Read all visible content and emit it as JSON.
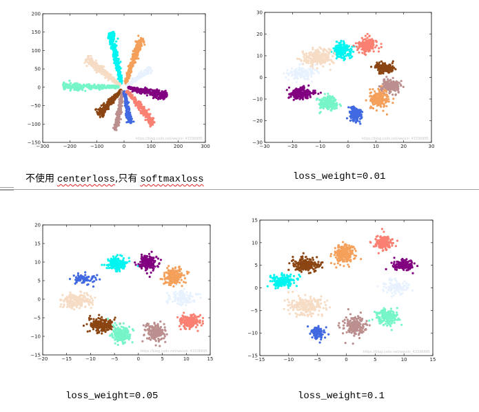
{
  "captions": {
    "c1_zh1": "不使用",
    "c1_word1": "centerloss",
    "c1_zh2": ",只有",
    "c1_word2": "softmaxloss",
    "c2": "loss_weight=0.01",
    "c3": "loss_weight=0.05",
    "c4": "loss_weight=0.1"
  },
  "watermark": "https://blog.csdn.net/weixin_43336895",
  "chart_data": [
    {
      "id": "softmax",
      "type": "scatter",
      "title": "",
      "xlabel": "",
      "ylabel": "",
      "xlim": [
        -300,
        300
      ],
      "ylim": [
        -150,
        200
      ],
      "xticks": [
        -300,
        -200,
        -100,
        0,
        100,
        200,
        300
      ],
      "yticks": [
        -150,
        -100,
        -50,
        0,
        50,
        100,
        150,
        200
      ],
      "grid": false,
      "series": [
        {
          "name": "cyan",
          "color": "#00f5f0",
          "shape": "ray",
          "start": [
            -10,
            10
          ],
          "end": [
            -50,
            148
          ],
          "spread": 5,
          "n": 300
        },
        {
          "name": "sandybrown",
          "color": "#f5a05a",
          "shape": "ray",
          "start": [
            5,
            10
          ],
          "end": [
            65,
            135
          ],
          "spread": 5,
          "n": 300
        },
        {
          "name": "bisque",
          "color": "#f6dcc4",
          "shape": "ray",
          "start": [
            -15,
            5
          ],
          "end": [
            -140,
            80
          ],
          "spread": 5,
          "n": 260
        },
        {
          "name": "aliceblue",
          "color": "#e8f2ff",
          "shape": "ray",
          "start": [
            10,
            5
          ],
          "end": [
            100,
            52
          ],
          "spread": 4,
          "n": 160
        },
        {
          "name": "aquamarine",
          "color": "#76f5c8",
          "shape": "ray",
          "start": [
            -20,
            1
          ],
          "end": [
            -225,
            2
          ],
          "spread": 4,
          "n": 300
        },
        {
          "name": "purple",
          "color": "#800080",
          "shape": "ray",
          "start": [
            15,
            -2
          ],
          "end": [
            158,
            -23
          ],
          "spread": 5,
          "n": 300
        },
        {
          "name": "saddlebrown",
          "color": "#8b4513",
          "shape": "ray",
          "start": [
            -10,
            -8
          ],
          "end": [
            -95,
            -75
          ],
          "spread": 5,
          "n": 280
        },
        {
          "name": "rosybrown",
          "color": "#bc8f8f",
          "shape": "ray",
          "start": [
            -5,
            -10
          ],
          "end": [
            -30,
            -118
          ],
          "spread": 4,
          "n": 240
        },
        {
          "name": "royalblue",
          "color": "#4169e1",
          "shape": "ray",
          "start": [
            2,
            -10
          ],
          "end": [
            22,
            -98
          ],
          "spread": 4,
          "n": 200
        },
        {
          "name": "salmon",
          "color": "#fa8072",
          "shape": "ray",
          "start": [
            10,
            -10
          ],
          "end": [
            110,
            -98
          ],
          "spread": 5,
          "n": 260
        }
      ]
    },
    {
      "id": "w001",
      "type": "scatter",
      "title": "",
      "xlabel": "",
      "ylabel": "",
      "xlim": [
        -30,
        30
      ],
      "ylim": [
        -30,
        30
      ],
      "xticks": [
        -30,
        -20,
        -10,
        0,
        10,
        20,
        30
      ],
      "yticks": [
        -30,
        -20,
        -10,
        0,
        10,
        20,
        30
      ],
      "grid": false,
      "series": [
        {
          "name": "cyan",
          "color": "#00f5f0",
          "shape": "blob",
          "center": [
            -2,
            12.5
          ],
          "sd": [
            1.6,
            1.7
          ],
          "n": 200
        },
        {
          "name": "salmon",
          "color": "#fa8072",
          "shape": "blob",
          "center": [
            7,
            15
          ],
          "sd": [
            1.8,
            1.7
          ],
          "n": 180
        },
        {
          "name": "bisque",
          "color": "#f6dcc4",
          "shape": "blob",
          "center": [
            -11,
            9
          ],
          "sd": [
            2.6,
            1.9
          ],
          "n": 230
        },
        {
          "name": "saddlebrown",
          "color": "#8b4513",
          "shape": "blob",
          "center": [
            13,
            4.5
          ],
          "sd": [
            1.6,
            1.1
          ],
          "n": 180
        },
        {
          "name": "aliceblue",
          "color": "#e8f2ff",
          "shape": "blob",
          "center": [
            -17,
            2
          ],
          "sd": [
            2.4,
            1.5
          ],
          "n": 130
        },
        {
          "name": "rosybrown",
          "color": "#bc8f8f",
          "shape": "blob",
          "center": [
            15,
            -4
          ],
          "sd": [
            1.8,
            1.7
          ],
          "n": 180
        },
        {
          "name": "purple",
          "color": "#800080",
          "shape": "blob",
          "center": [
            -17,
            -7.5
          ],
          "sd": [
            2.1,
            1.3
          ],
          "n": 190
        },
        {
          "name": "sandybrown",
          "color": "#f5a05a",
          "shape": "blob",
          "center": [
            11,
            -10
          ],
          "sd": [
            1.7,
            1.9
          ],
          "n": 180
        },
        {
          "name": "aquamarine",
          "color": "#76f5c8",
          "shape": "blob",
          "center": [
            -7,
            -12
          ],
          "sd": [
            1.9,
            1.5
          ],
          "n": 190
        },
        {
          "name": "royalblue",
          "color": "#4169e1",
          "shape": "blob",
          "center": [
            2.5,
            -17
          ],
          "sd": [
            1.1,
            1.9
          ],
          "n": 170
        }
      ]
    },
    {
      "id": "w005",
      "type": "scatter",
      "title": "",
      "xlabel": "",
      "ylabel": "",
      "xlim": [
        -20,
        15
      ],
      "ylim": [
        -15,
        20
      ],
      "xticks": [
        -20,
        -15,
        -10,
        -5,
        0,
        5,
        10,
        15
      ],
      "yticks": [
        -15,
        -10,
        -5,
        0,
        5,
        10,
        15,
        20
      ],
      "grid": false,
      "series": [
        {
          "name": "cyan",
          "color": "#00f5f0",
          "shape": "blob",
          "center": [
            -4.5,
            9.5
          ],
          "sd": [
            1.0,
            0.9
          ],
          "n": 190
        },
        {
          "name": "purple",
          "color": "#800080",
          "shape": "blob",
          "center": [
            2,
            10
          ],
          "sd": [
            0.9,
            1.0
          ],
          "n": 150
        },
        {
          "name": "royalblue",
          "color": "#4169e1",
          "shape": "blob",
          "center": [
            -11.5,
            5.5
          ],
          "sd": [
            1.2,
            0.6
          ],
          "n": 80
        },
        {
          "name": "sandybrown",
          "color": "#f5a05a",
          "shape": "blob",
          "center": [
            7.5,
            6
          ],
          "sd": [
            1.0,
            1.1
          ],
          "n": 190
        },
        {
          "name": "bisque",
          "color": "#f6dcc4",
          "shape": "blob",
          "center": [
            -13,
            -0.5
          ],
          "sd": [
            1.6,
            1.0
          ],
          "n": 200
        },
        {
          "name": "aliceblue",
          "color": "#e8f2ff",
          "shape": "blob",
          "center": [
            9,
            0.5
          ],
          "sd": [
            1.5,
            1.0
          ],
          "n": 120
        },
        {
          "name": "saddlebrown",
          "color": "#8b4513",
          "shape": "blob",
          "center": [
            -8,
            -7
          ],
          "sd": [
            1.3,
            1.0
          ],
          "n": 200
        },
        {
          "name": "salmon",
          "color": "#fa8072",
          "shape": "blob",
          "center": [
            10.5,
            -6
          ],
          "sd": [
            1.1,
            0.9
          ],
          "n": 170
        },
        {
          "name": "aquamarine",
          "color": "#76f5c8",
          "shape": "blob",
          "center": [
            -3.5,
            -9.5
          ],
          "sd": [
            1.0,
            1.3
          ],
          "n": 190
        },
        {
          "name": "rosybrown",
          "color": "#bc8f8f",
          "shape": "blob",
          "center": [
            3.5,
            -9
          ],
          "sd": [
            1.0,
            1.0
          ],
          "n": 180
        }
      ]
    },
    {
      "id": "w01",
      "type": "scatter",
      "title": "",
      "xlabel": "",
      "ylabel": "",
      "xlim": [
        -15,
        15
      ],
      "ylim": [
        -15,
        15
      ],
      "xticks": [
        -15,
        -10,
        -5,
        0,
        5,
        10,
        15
      ],
      "yticks": [
        -15,
        -10,
        -5,
        0,
        5,
        10,
        15
      ],
      "grid": false,
      "series": [
        {
          "name": "sandybrown",
          "color": "#f5a05a",
          "shape": "blob",
          "center": [
            -0.5,
            7.5
          ],
          "sd": [
            0.9,
            1.1
          ],
          "n": 190
        },
        {
          "name": "salmon",
          "color": "#fa8072",
          "shape": "blob",
          "center": [
            6.5,
            10
          ],
          "sd": [
            0.8,
            0.8
          ],
          "n": 140
        },
        {
          "name": "saddlebrown",
          "color": "#8b4513",
          "shape": "blob",
          "center": [
            -7,
            5
          ],
          "sd": [
            1.2,
            0.8
          ],
          "n": 190
        },
        {
          "name": "purple",
          "color": "#800080",
          "shape": "blob",
          "center": [
            10,
            5
          ],
          "sd": [
            1.0,
            0.6
          ],
          "n": 160
        },
        {
          "name": "cyan",
          "color": "#00f5f0",
          "shape": "blob",
          "center": [
            -11,
            1.5
          ],
          "sd": [
            1.0,
            0.7
          ],
          "n": 170
        },
        {
          "name": "aliceblue",
          "color": "#e8f2ff",
          "shape": "blob",
          "center": [
            8.5,
            0
          ],
          "sd": [
            1.2,
            0.8
          ],
          "n": 110
        },
        {
          "name": "bisque",
          "color": "#f6dcc4",
          "shape": "blob",
          "center": [
            -7,
            -4
          ],
          "sd": [
            1.6,
            1.0
          ],
          "n": 210
        },
        {
          "name": "aquamarine",
          "color": "#76f5c8",
          "shape": "blob",
          "center": [
            7,
            -6.5
          ],
          "sd": [
            1.0,
            0.8
          ],
          "n": 170
        },
        {
          "name": "royalblue",
          "color": "#4169e1",
          "shape": "blob",
          "center": [
            -5,
            -10
          ],
          "sd": [
            0.6,
            0.7
          ],
          "n": 100
        },
        {
          "name": "rosybrown",
          "color": "#bc8f8f",
          "shape": "blob",
          "center": [
            1.5,
            -8.5
          ],
          "sd": [
            0.9,
            1.1
          ],
          "n": 190
        }
      ]
    }
  ]
}
